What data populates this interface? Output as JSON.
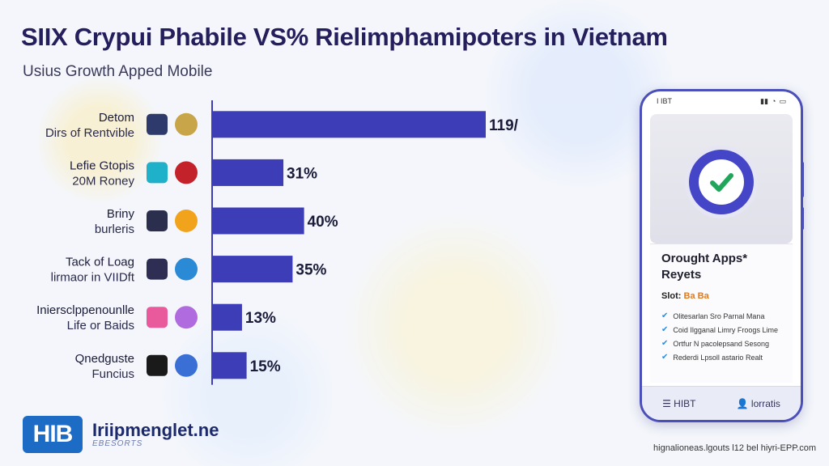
{
  "header": {
    "title": "SIIX Crypui Phabile VS% Rielimphamipoters in Vietnam",
    "subtitle": "Usius Growth Apped Mobile"
  },
  "chart_data": {
    "type": "bar",
    "orientation": "horizontal",
    "categories": [
      [
        "Detom",
        "Dirs of Rentvible"
      ],
      [
        "Lefie Gtopis",
        "20M Roney"
      ],
      [
        "Briny",
        "burleris"
      ],
      [
        "Tack of Loag",
        "lirmaor in VIIDft"
      ],
      [
        "Iniersclppenounlle",
        "Life or Baids"
      ],
      [
        "Qnedguste",
        "Funcius"
      ]
    ],
    "values": [
      119,
      31,
      40,
      35,
      13,
      15
    ],
    "value_labels": [
      "119/",
      "31%",
      "40%",
      "35%",
      "13%",
      "15%"
    ],
    "icon_pairs": [
      [
        "#2e3a6b",
        "#c9a54a"
      ],
      [
        "#1fb1c9",
        "#c4222a"
      ],
      [
        "#2b2e4d",
        "#f2a31c"
      ],
      [
        "#2e2e55",
        "#2a8ad6"
      ],
      [
        "#e85a9c",
        "#b06bdf"
      ],
      [
        "#1a1a1a",
        "#3a6fd6"
      ]
    ],
    "bar_color": "#3d3db8",
    "xlim": [
      0,
      119
    ]
  },
  "phone": {
    "time": "I IBT",
    "card_title": "Orought Apps* Reyets",
    "card_sub_label": "Slot:",
    "card_sub_value": "Ba Ba",
    "items": [
      "Olitesarlan Sro Parnal Mana",
      "Coid Ilgganal Limry Froogs Lime",
      "Ortfur N pacolepsand Sesong",
      "Rederdi Lpsoll astario Realt"
    ],
    "footer_left": "HIBT",
    "footer_right": "lorratis"
  },
  "brand": {
    "logo": "HIB",
    "name": "Iriipmenglet.ne",
    "tagline": "EBESORTS"
  },
  "footnote": "hignalioneas.lgouts l12 bel hiyri-EPP.com"
}
